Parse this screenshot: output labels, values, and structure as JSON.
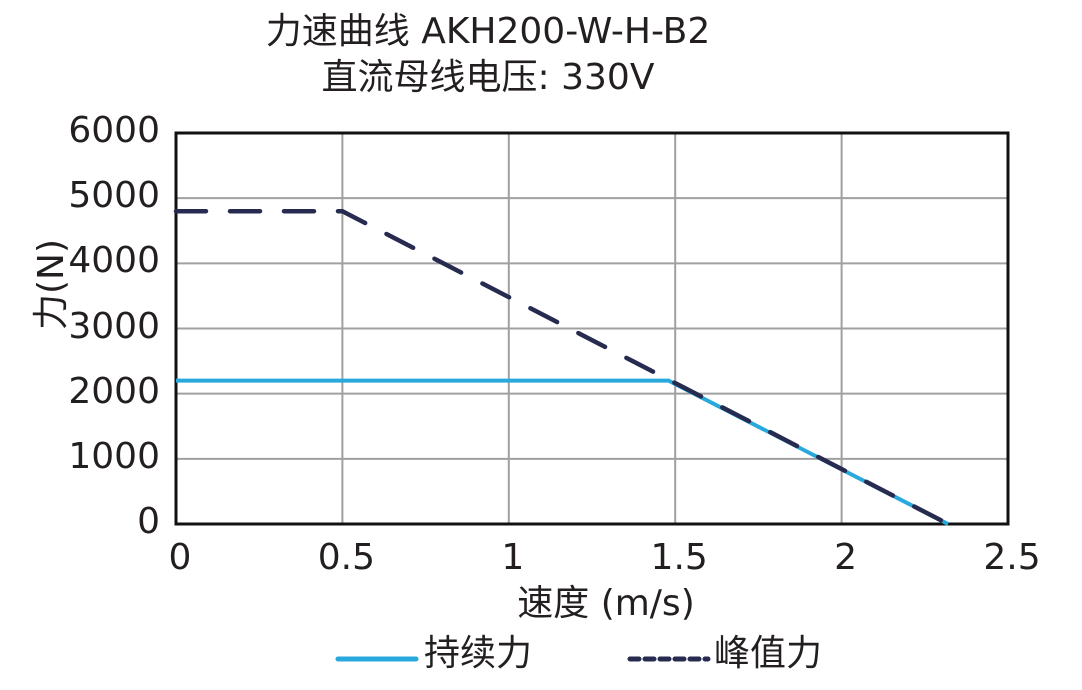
{
  "chart_data": {
    "type": "line",
    "title": "力速曲线 AKH200-W-H-B2",
    "subtitle": "直流母线电压: 330V",
    "xlabel": "速度 (m/s)",
    "ylabel": "力(N)",
    "xlim": [
      0,
      2.5
    ],
    "ylim": [
      0,
      6000
    ],
    "x_ticks": [
      "0",
      "0.5",
      "1",
      "1.5",
      "2",
      "2.5"
    ],
    "y_ticks": [
      "0",
      "1000",
      "2000",
      "3000",
      "4000",
      "5000",
      "6000"
    ],
    "grid": true,
    "legend_position": "bottom",
    "series": [
      {
        "name": "持续力",
        "style": "solid",
        "color": "#29a8dc",
        "x": [
          0,
          1.48,
          2.32
        ],
        "y": [
          2200,
          2200,
          0
        ]
      },
      {
        "name": "峰值力",
        "style": "dashed",
        "color": "#272b4f",
        "x": [
          0,
          0.5,
          2.32
        ],
        "y": [
          4800,
          4800,
          0
        ]
      }
    ]
  },
  "legend": {
    "continuous": "持续力",
    "peak": "峰值力"
  }
}
